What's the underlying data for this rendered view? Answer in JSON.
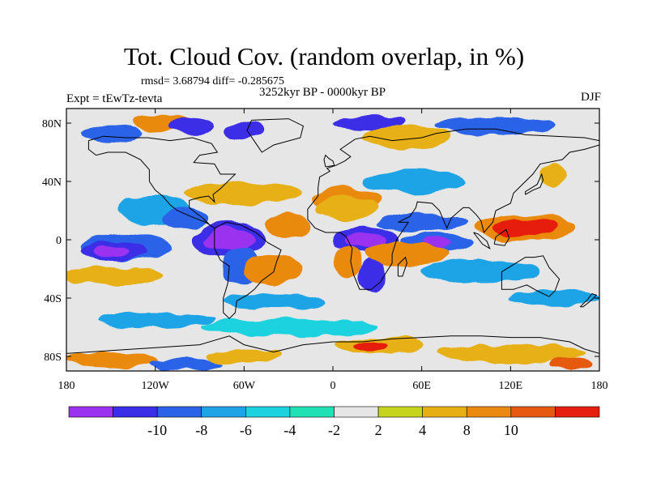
{
  "title": "Tot. Cloud Cov. (random overlap, in %)",
  "stats": "rmsd= 3.68794  diff= -0.285675",
  "experiment": "Expt = tEwTz-tevta",
  "period": "3252kyr BP - 0000kyr BP",
  "season": "DJF",
  "map": {
    "lon_range": [
      -180,
      180
    ],
    "lat_range": [
      -90,
      90
    ],
    "lon_ticks": [
      {
        "value": -180,
        "label": "180"
      },
      {
        "value": -120,
        "label": "120W"
      },
      {
        "value": -60,
        "label": "60W"
      },
      {
        "value": 0,
        "label": "0"
      },
      {
        "value": 60,
        "label": "60E"
      },
      {
        "value": 120,
        "label": "120E"
      },
      {
        "value": 180,
        "label": "180"
      }
    ],
    "lat_ticks": [
      {
        "value": 80,
        "label": "80N"
      },
      {
        "value": 40,
        "label": "40N"
      },
      {
        "value": 0,
        "label": "0"
      },
      {
        "value": -40,
        "label": "40S"
      },
      {
        "value": -80,
        "label": "80S"
      }
    ],
    "anomaly_regions": [
      {
        "lon": -115,
        "lat": 80,
        "r_lon": 22,
        "r_lat": 6,
        "level": 9
      },
      {
        "lon": -95,
        "lat": 78,
        "r_lon": 14,
        "r_lat": 6,
        "level": 1
      },
      {
        "lon": -60,
        "lat": 75,
        "r_lon": 12,
        "r_lat": 6,
        "level": 1
      },
      {
        "lon": -150,
        "lat": 73,
        "r_lon": 20,
        "r_lat": 5,
        "level": 2
      },
      {
        "lon": 25,
        "lat": 80,
        "r_lon": 25,
        "r_lat": 5,
        "level": 1
      },
      {
        "lon": 50,
        "lat": 70,
        "r_lon": 30,
        "r_lat": 8,
        "level": 8
      },
      {
        "lon": 110,
        "lat": 78,
        "r_lon": 40,
        "r_lat": 6,
        "level": 2
      },
      {
        "lon": -120,
        "lat": 20,
        "r_lon": 25,
        "r_lat": 10,
        "level": 3
      },
      {
        "lon": -100,
        "lat": 15,
        "r_lon": 15,
        "r_lat": 8,
        "level": 2
      },
      {
        "lon": -60,
        "lat": 32,
        "r_lon": 40,
        "r_lat": 8,
        "level": 8
      },
      {
        "lon": -30,
        "lat": 10,
        "r_lon": 15,
        "r_lat": 8,
        "level": 9
      },
      {
        "lon": 10,
        "lat": 28,
        "r_lon": 22,
        "r_lat": 8,
        "level": 9
      },
      {
        "lon": 10,
        "lat": 22,
        "r_lon": 20,
        "r_lat": 8,
        "level": 8
      },
      {
        "lon": 55,
        "lat": 40,
        "r_lon": 35,
        "r_lat": 8,
        "level": 3
      },
      {
        "lon": 60,
        "lat": 12,
        "r_lon": 30,
        "r_lat": 6,
        "level": 2
      },
      {
        "lon": 130,
        "lat": 8,
        "r_lon": 35,
        "r_lat": 9,
        "level": 9
      },
      {
        "lon": 130,
        "lat": 8,
        "r_lon": 22,
        "r_lat": 6,
        "level": 11
      },
      {
        "lon": 148,
        "lat": 45,
        "r_lon": 10,
        "r_lat": 8,
        "level": 8
      },
      {
        "lon": -140,
        "lat": -5,
        "r_lon": 30,
        "r_lat": 10,
        "level": 2
      },
      {
        "lon": -148,
        "lat": -8,
        "r_lon": 22,
        "r_lat": 7,
        "level": 1
      },
      {
        "lon": -150,
        "lat": -8,
        "r_lon": 12,
        "r_lat": 4,
        "level": 0
      },
      {
        "lon": -150,
        "lat": -25,
        "r_lon": 35,
        "r_lat": 6,
        "level": 8
      },
      {
        "lon": -70,
        "lat": 0,
        "r_lon": 25,
        "r_lat": 12,
        "level": 1
      },
      {
        "lon": -70,
        "lat": 0,
        "r_lon": 18,
        "r_lat": 8,
        "level": 0
      },
      {
        "lon": -62,
        "lat": -18,
        "r_lon": 12,
        "r_lat": 12,
        "level": 2
      },
      {
        "lon": -40,
        "lat": -20,
        "r_lon": 20,
        "r_lat": 10,
        "level": 9
      },
      {
        "lon": -40,
        "lat": -42,
        "r_lon": 35,
        "r_lat": 5,
        "level": 3
      },
      {
        "lon": 22,
        "lat": 0,
        "r_lon": 22,
        "r_lat": 10,
        "level": 1
      },
      {
        "lon": 22,
        "lat": 0,
        "r_lon": 14,
        "r_lat": 6,
        "level": 0
      },
      {
        "lon": 26,
        "lat": -25,
        "r_lon": 10,
        "r_lat": 12,
        "level": 1
      },
      {
        "lon": 10,
        "lat": -15,
        "r_lon": 8,
        "r_lat": 10,
        "level": 9
      },
      {
        "lon": 70,
        "lat": -2,
        "r_lon": 25,
        "r_lat": 7,
        "level": 2
      },
      {
        "lon": 70,
        "lat": -2,
        "r_lon": 10,
        "r_lat": 4,
        "level": 0
      },
      {
        "lon": 50,
        "lat": -10,
        "r_lon": 30,
        "r_lat": 8,
        "level": 9
      },
      {
        "lon": 100,
        "lat": -22,
        "r_lon": 40,
        "r_lat": 8,
        "level": 3
      },
      {
        "lon": 150,
        "lat": -40,
        "r_lon": 30,
        "r_lat": 6,
        "level": 3
      },
      {
        "lon": -30,
        "lat": -60,
        "r_lon": 60,
        "r_lat": 6,
        "level": 4
      },
      {
        "lon": -120,
        "lat": -55,
        "r_lon": 40,
        "r_lat": 5,
        "level": 3
      },
      {
        "lon": 30,
        "lat": -72,
        "r_lon": 30,
        "r_lat": 6,
        "level": 8
      },
      {
        "lon": 25,
        "lat": -72,
        "r_lon": 12,
        "r_lat": 4,
        "level": 11
      },
      {
        "lon": 120,
        "lat": -78,
        "r_lon": 50,
        "r_lat": 6,
        "level": 8
      },
      {
        "lon": -150,
        "lat": -82,
        "r_lon": 30,
        "r_lat": 5,
        "level": 9
      },
      {
        "lon": -100,
        "lat": -85,
        "r_lon": 25,
        "r_lat": 4,
        "level": 2
      },
      {
        "lon": -60,
        "lat": -80,
        "r_lon": 25,
        "r_lat": 5,
        "level": 8
      },
      {
        "lon": 160,
        "lat": -85,
        "r_lon": 15,
        "r_lat": 4,
        "level": 10
      }
    ]
  },
  "colorbar": {
    "colors": [
      "#9a32f0",
      "#3a2ee6",
      "#2b63e8",
      "#1ea4e6",
      "#1cd2df",
      "#20e0b5",
      "#e6e6e6",
      "#c6d41e",
      "#e6b014",
      "#ea8a10",
      "#e55a10",
      "#e61e10"
    ],
    "labels": [
      "-10",
      "-8",
      "-6",
      "-4",
      "-2",
      "2",
      "4",
      "8",
      "10"
    ]
  }
}
